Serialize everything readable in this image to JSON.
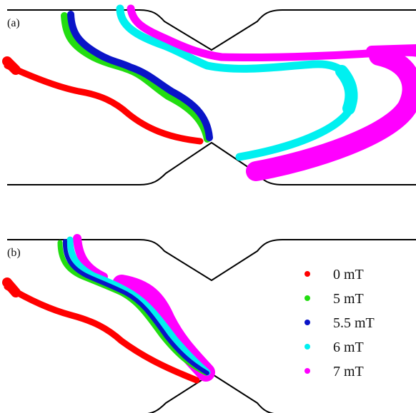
{
  "panels": [
    {
      "id": "a",
      "label": "(a)"
    },
    {
      "id": "b",
      "label": "(b)"
    }
  ],
  "legend": {
    "items": [
      {
        "label": "0 mT",
        "color": "#ff0000"
      },
      {
        "label": "5 mT",
        "color": "#22dd11"
      },
      {
        "label": "5.5 mT",
        "color": "#0a14c8"
      },
      {
        "label": "6 mT",
        "color": "#00f0f0"
      },
      {
        "label": "7 mT",
        "color": "#ff00ff"
      }
    ]
  }
}
